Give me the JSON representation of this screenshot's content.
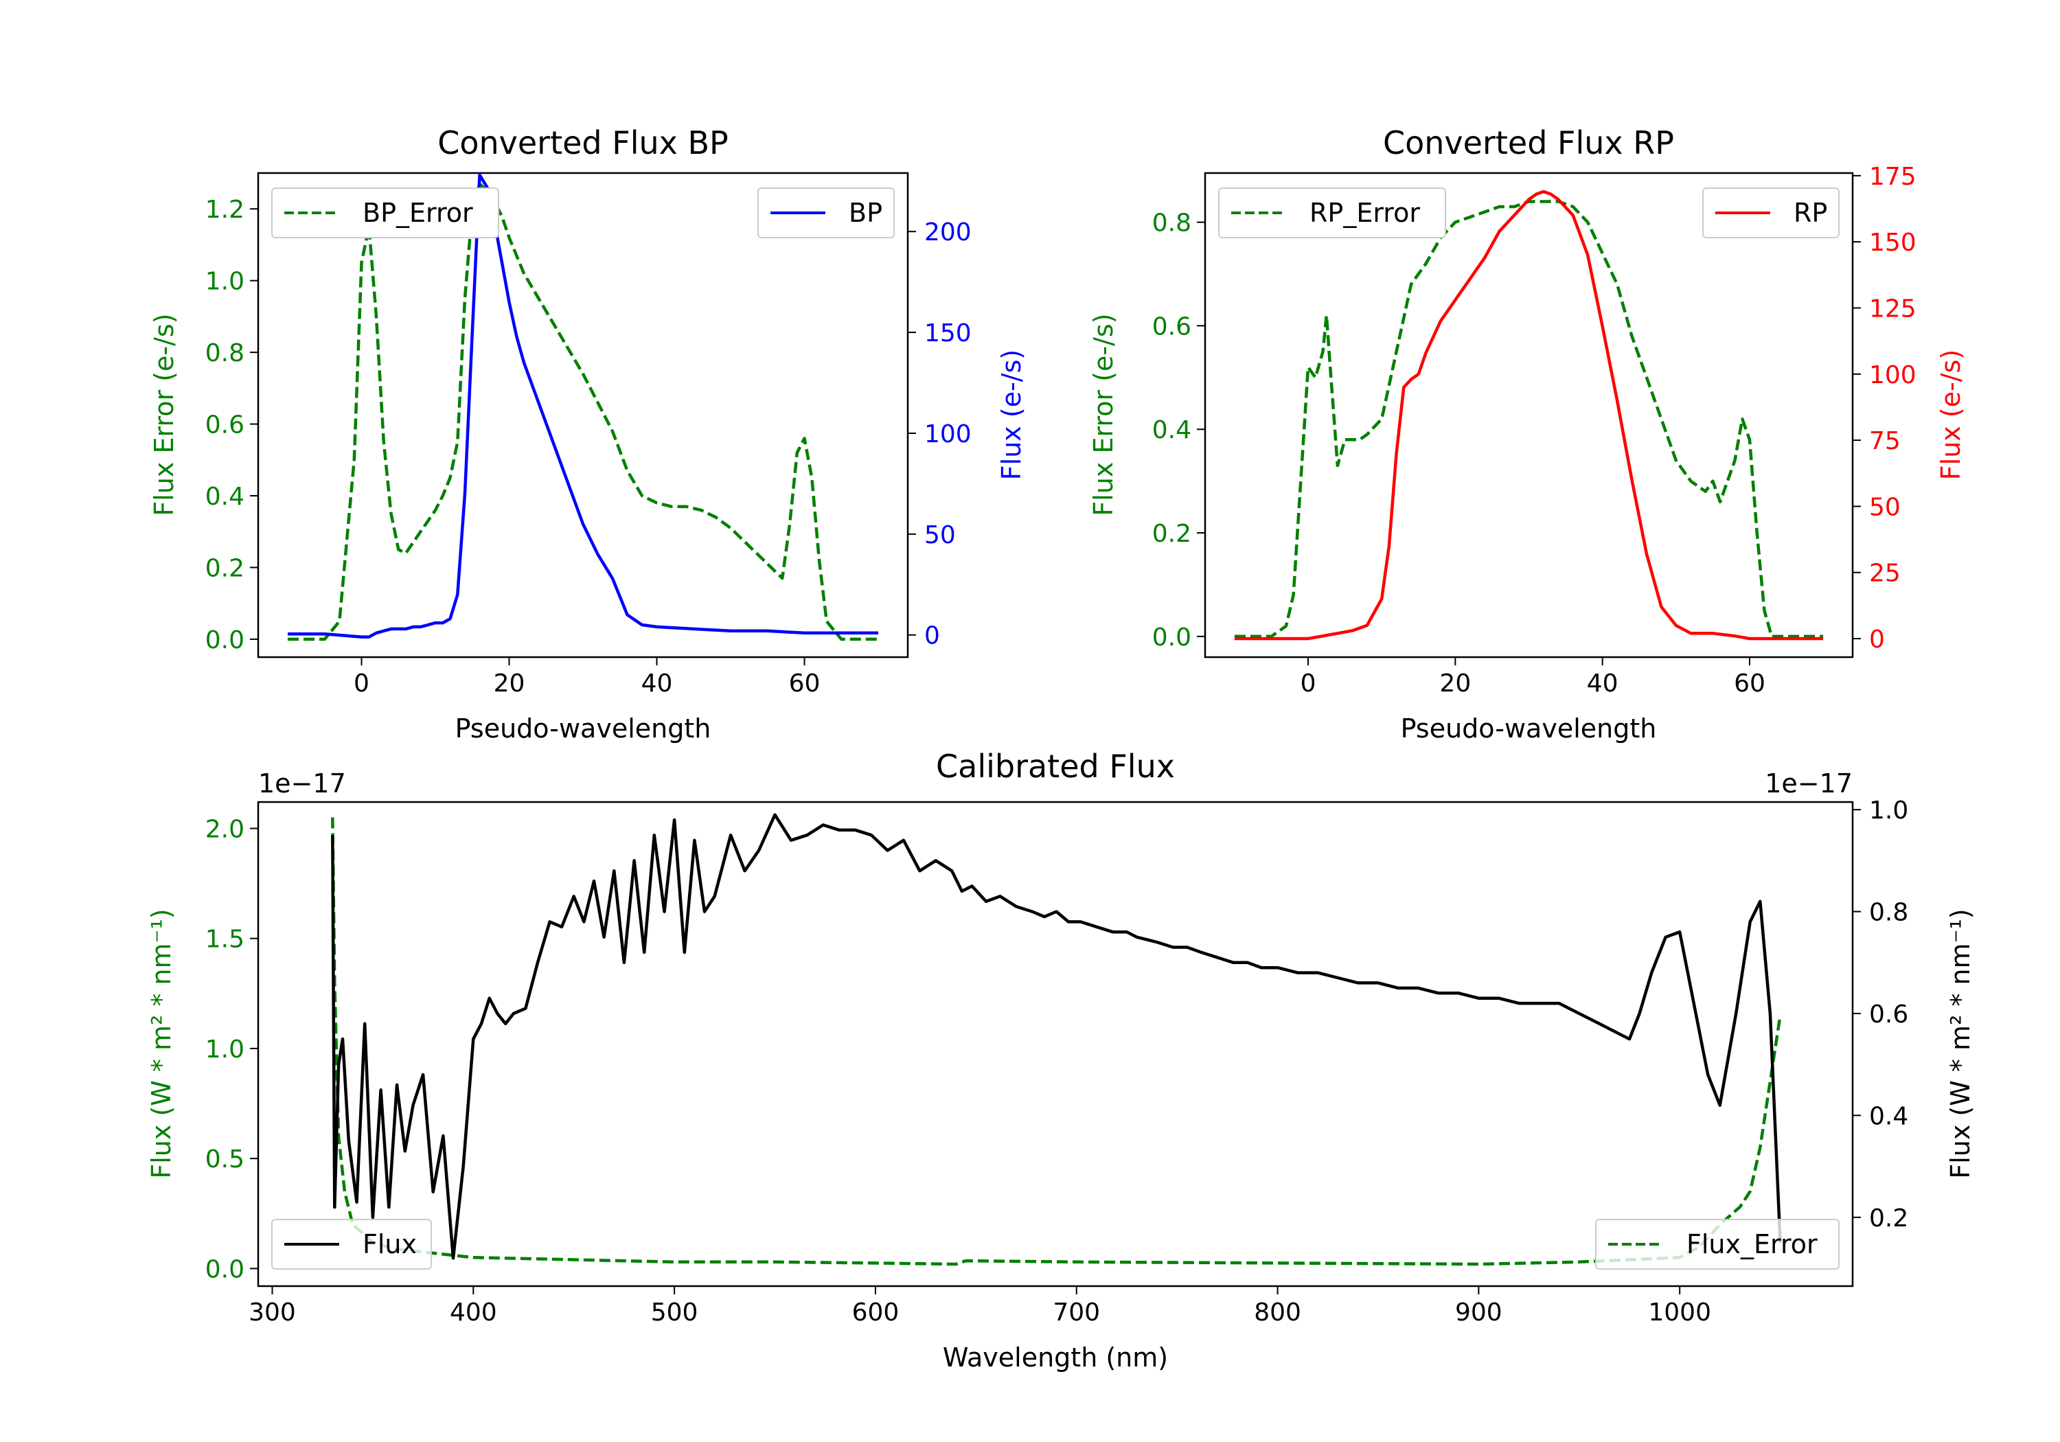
{
  "chart_data": [
    {
      "id": "bp",
      "type": "line",
      "title": "Converted Flux BP",
      "xlabel": "Pseudo-wavelength",
      "ylabel_left": "Flux Error (e-/s)",
      "ylabel_right": "Flux (e-/s)",
      "xlim": [
        -14,
        74
      ],
      "ylim_left": [
        -0.05,
        1.3
      ],
      "ylim_right": [
        -11,
        229
      ],
      "xticks": [
        0,
        20,
        40,
        60
      ],
      "yticks_left": [
        0.0,
        0.2,
        0.4,
        0.6,
        0.8,
        1.0,
        1.2
      ],
      "yticks_right": [
        0,
        50,
        100,
        150,
        200
      ],
      "colors": {
        "left_axis": "#008000",
        "right_axis": "#0000ff",
        "error_line": "#008000",
        "flux_line": "#0000ff"
      },
      "legend_left": {
        "label": "BP_Error",
        "placement": "upper left"
      },
      "legend_right": {
        "label": "BP",
        "placement": "upper right"
      },
      "series": [
        {
          "name": "BP_Error",
          "axis": "left",
          "style": "dashed",
          "x": [
            -10,
            -5,
            -3,
            -1,
            0,
            1,
            2,
            3,
            4,
            5,
            6,
            7,
            8,
            9,
            10,
            11,
            12,
            13,
            14,
            15,
            16,
            17,
            18,
            19,
            20,
            22,
            24,
            26,
            28,
            30,
            32,
            34,
            36,
            38,
            40,
            42,
            44,
            46,
            48,
            50,
            52,
            54,
            56,
            57,
            58,
            59,
            60,
            61,
            62,
            63,
            65,
            70
          ],
          "y": [
            0.0,
            0.0,
            0.05,
            0.5,
            1.05,
            1.15,
            0.9,
            0.55,
            0.35,
            0.25,
            0.24,
            0.27,
            0.3,
            0.33,
            0.36,
            0.4,
            0.45,
            0.55,
            0.95,
            1.2,
            1.27,
            1.25,
            1.22,
            1.18,
            1.12,
            1.02,
            0.95,
            0.88,
            0.81,
            0.74,
            0.66,
            0.58,
            0.47,
            0.4,
            0.38,
            0.37,
            0.37,
            0.36,
            0.34,
            0.31,
            0.27,
            0.23,
            0.19,
            0.17,
            0.32,
            0.52,
            0.56,
            0.45,
            0.22,
            0.05,
            0.0,
            0.0
          ]
        },
        {
          "name": "BP",
          "axis": "right",
          "style": "solid",
          "x": [
            -10,
            -5,
            0,
            1,
            2,
            3,
            4,
            5,
            6,
            7,
            8,
            9,
            10,
            11,
            12,
            13,
            14,
            15,
            16,
            17,
            18,
            19,
            20,
            21,
            22,
            24,
            26,
            28,
            30,
            32,
            34,
            36,
            38,
            40,
            45,
            50,
            55,
            60,
            65,
            70
          ],
          "y": [
            0.5,
            0.5,
            -1,
            -1,
            1,
            2,
            3,
            3,
            3,
            4,
            4,
            5,
            6,
            6,
            8,
            20,
            70,
            150,
            228,
            222,
            205,
            185,
            165,
            148,
            135,
            115,
            95,
            75,
            55,
            40,
            28,
            10,
            5,
            4,
            3,
            2,
            2,
            1,
            1,
            1
          ]
        }
      ]
    },
    {
      "id": "rp",
      "type": "line",
      "title": "Converted Flux RP",
      "xlabel": "Pseudo-wavelength",
      "ylabel_left": "Flux Error (e-/s)",
      "ylabel_right": "Flux (e-/s)",
      "xlim": [
        -14,
        74
      ],
      "ylim_left": [
        -0.04,
        0.895
      ],
      "ylim_right": [
        -7,
        176
      ],
      "xticks": [
        0,
        20,
        40,
        60
      ],
      "yticks_left": [
        0.0,
        0.2,
        0.4,
        0.6,
        0.8
      ],
      "yticks_right": [
        0,
        25,
        50,
        75,
        100,
        125,
        150,
        175
      ],
      "colors": {
        "left_axis": "#008000",
        "right_axis": "#ff0000",
        "error_line": "#008000",
        "flux_line": "#ff0000"
      },
      "legend_left": {
        "label": "RP_Error",
        "placement": "upper left"
      },
      "legend_right": {
        "label": "RP",
        "placement": "upper right"
      },
      "series": [
        {
          "name": "RP_Error",
          "axis": "left",
          "style": "dashed",
          "x": [
            -10,
            -5,
            -3,
            -2,
            -1,
            0,
            1,
            2,
            2.5,
            3,
            4,
            5,
            6,
            7,
            8,
            10,
            12,
            14,
            16,
            18,
            20,
            22,
            24,
            26,
            28,
            30,
            32,
            34,
            36,
            38,
            40,
            42,
            44,
            46,
            48,
            50,
            52,
            54,
            55,
            56,
            57,
            58,
            59,
            60,
            61,
            62,
            63,
            65,
            70
          ],
          "y": [
            0.0,
            0.0,
            0.02,
            0.08,
            0.3,
            0.52,
            0.5,
            0.55,
            0.62,
            0.52,
            0.33,
            0.38,
            0.38,
            0.38,
            0.39,
            0.42,
            0.55,
            0.68,
            0.72,
            0.77,
            0.8,
            0.81,
            0.82,
            0.83,
            0.83,
            0.84,
            0.84,
            0.84,
            0.83,
            0.8,
            0.74,
            0.68,
            0.58,
            0.5,
            0.42,
            0.34,
            0.3,
            0.28,
            0.3,
            0.26,
            0.3,
            0.34,
            0.42,
            0.38,
            0.2,
            0.05,
            0.0,
            0.0,
            0.0
          ]
        },
        {
          "name": "RP",
          "axis": "right",
          "style": "solid",
          "x": [
            -10,
            -5,
            0,
            2,
            4,
            6,
            8,
            10,
            11,
            12,
            13,
            14,
            15,
            16,
            18,
            20,
            22,
            24,
            26,
            28,
            30,
            31,
            32,
            33,
            34,
            36,
            38,
            40,
            42,
            44,
            46,
            48,
            50,
            52,
            55,
            58,
            60,
            62,
            65,
            70
          ],
          "y": [
            0,
            0,
            0,
            1,
            2,
            3,
            5,
            15,
            35,
            70,
            95,
            98,
            100,
            108,
            120,
            128,
            136,
            144,
            154,
            160,
            166,
            168,
            169,
            168,
            166,
            160,
            145,
            118,
            90,
            60,
            32,
            12,
            5,
            2,
            2,
            1,
            0,
            0,
            0,
            0
          ]
        }
      ]
    },
    {
      "id": "calibrated",
      "type": "line",
      "title": "Calibrated Flux",
      "xlabel": "Wavelength (nm)",
      "ylabel_left": "Flux (W * m² * nm⁻¹)",
      "ylabel_right": "Flux (W * m² * nm⁻¹)",
      "offset_left": "1e−17",
      "offset_right": "1e−17",
      "xlim": [
        293,
        1086
      ],
      "ylim_left": [
        -0.08,
        2.12
      ],
      "ylim_right": [
        0.065,
        1.015
      ],
      "xticks": [
        300,
        400,
        500,
        600,
        700,
        800,
        900,
        1000
      ],
      "yticks_left": [
        0.0,
        0.5,
        1.0,
        1.5,
        2.0
      ],
      "yticks_right": [
        0.2,
        0.4,
        0.6,
        0.8,
        1.0
      ],
      "colors": {
        "left_axis": "#008000",
        "right_axis": "#000000",
        "error_line": "#008000",
        "flux_line": "#000000"
      },
      "legend_left": {
        "label": "Flux",
        "placement": "lower left"
      },
      "legend_right": {
        "label": "Flux_Error",
        "placement": "lower right"
      },
      "series": [
        {
          "name": "Flux_Error",
          "axis": "left",
          "style": "dashed",
          "x": [
            330,
            331,
            333,
            336,
            340,
            350,
            360,
            380,
            400,
            450,
            500,
            550,
            600,
            640,
            645,
            700,
            800,
            900,
            950,
            1000,
            1010,
            1020,
            1030,
            1035,
            1040,
            1045,
            1050
          ],
          "y": [
            2.05,
            1.3,
            0.6,
            0.35,
            0.2,
            0.12,
            0.09,
            0.07,
            0.05,
            0.04,
            0.03,
            0.03,
            0.025,
            0.02,
            0.035,
            0.03,
            0.025,
            0.02,
            0.03,
            0.05,
            0.1,
            0.2,
            0.28,
            0.35,
            0.55,
            0.85,
            1.15
          ]
        },
        {
          "name": "Flux",
          "axis": "right",
          "style": "solid",
          "x": [
            330,
            331,
            333,
            335,
            338,
            342,
            346,
            350,
            354,
            358,
            362,
            366,
            370,
            375,
            380,
            385,
            390,
            395,
            400,
            404,
            408,
            412,
            416,
            420,
            426,
            432,
            438,
            444,
            450,
            455,
            460,
            465,
            470,
            475,
            480,
            485,
            490,
            495,
            500,
            505,
            510,
            515,
            520,
            528,
            535,
            542,
            550,
            558,
            566,
            574,
            582,
            590,
            598,
            606,
            614,
            622,
            630,
            638,
            643,
            648,
            655,
            662,
            670,
            678,
            684,
            690,
            696,
            702,
            710,
            718,
            725,
            730,
            740,
            748,
            755,
            762,
            770,
            778,
            785,
            792,
            800,
            810,
            820,
            830,
            840,
            850,
            860,
            870,
            880,
            890,
            900,
            910,
            920,
            930,
            940,
            950,
            960,
            970,
            975,
            980,
            986,
            993,
            1000,
            1007,
            1014,
            1020,
            1028,
            1035,
            1040,
            1045,
            1050
          ],
          "y": [
            0.95,
            0.22,
            0.5,
            0.55,
            0.35,
            0.23,
            0.58,
            0.2,
            0.45,
            0.22,
            0.46,
            0.33,
            0.42,
            0.48,
            0.25,
            0.36,
            0.12,
            0.3,
            0.55,
            0.58,
            0.63,
            0.6,
            0.58,
            0.6,
            0.61,
            0.7,
            0.78,
            0.77,
            0.83,
            0.78,
            0.86,
            0.75,
            0.88,
            0.7,
            0.9,
            0.72,
            0.95,
            0.8,
            0.98,
            0.72,
            0.94,
            0.8,
            0.83,
            0.95,
            0.88,
            0.92,
            0.99,
            0.94,
            0.95,
            0.97,
            0.96,
            0.96,
            0.95,
            0.92,
            0.94,
            0.88,
            0.9,
            0.88,
            0.84,
            0.85,
            0.82,
            0.83,
            0.81,
            0.8,
            0.79,
            0.8,
            0.78,
            0.78,
            0.77,
            0.76,
            0.76,
            0.75,
            0.74,
            0.73,
            0.73,
            0.72,
            0.71,
            0.7,
            0.7,
            0.69,
            0.69,
            0.68,
            0.68,
            0.67,
            0.66,
            0.66,
            0.65,
            0.65,
            0.64,
            0.64,
            0.63,
            0.63,
            0.62,
            0.62,
            0.62,
            0.6,
            0.58,
            0.56,
            0.55,
            0.6,
            0.68,
            0.75,
            0.76,
            0.62,
            0.48,
            0.42,
            0.6,
            0.78,
            0.82,
            0.6,
            0.15
          ]
        }
      ]
    }
  ]
}
